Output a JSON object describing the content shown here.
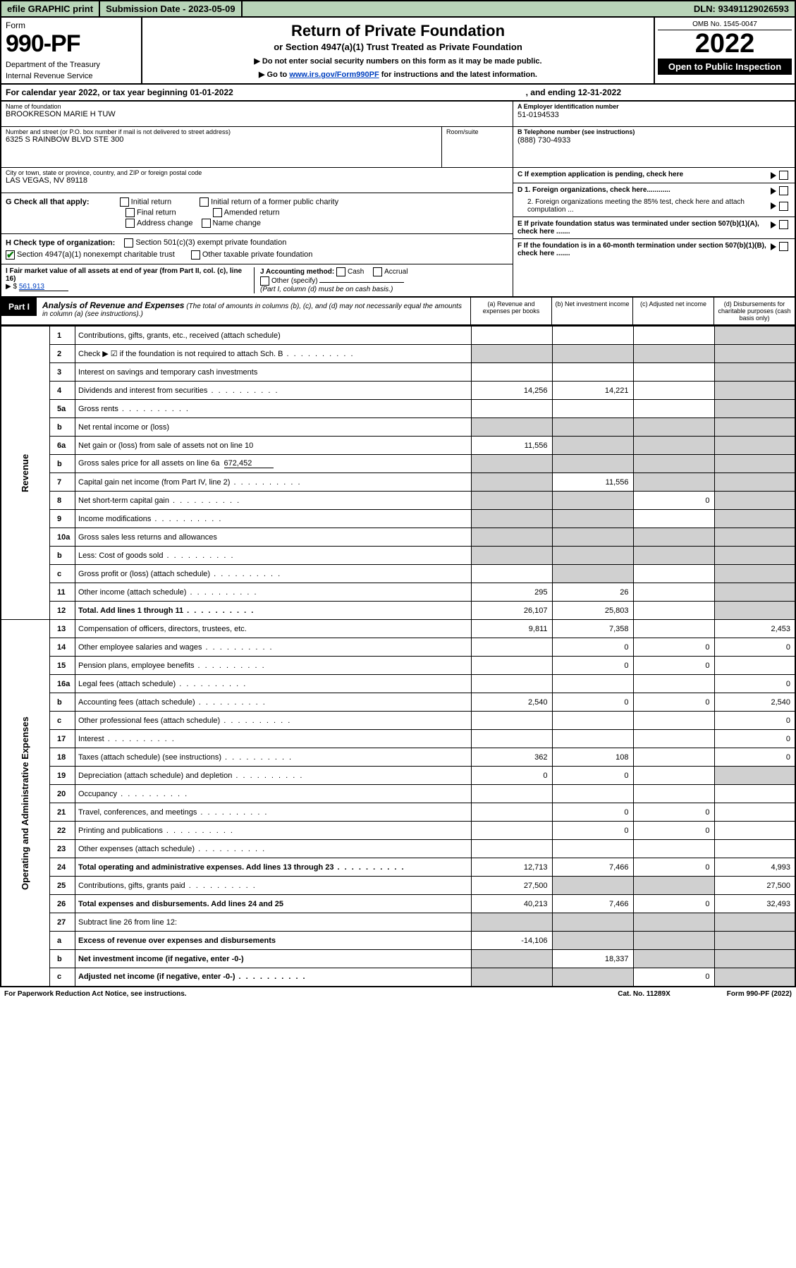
{
  "topbar": {
    "efile": "efile GRAPHIC print",
    "submission_label": "Submission Date - 2023-05-09",
    "dln": "DLN: 93491129026593"
  },
  "header": {
    "form_word": "Form",
    "form_num": "990-PF",
    "dept": "Department of the Treasury",
    "irs": "Internal Revenue Service",
    "title": "Return of Private Foundation",
    "subtitle": "or Section 4947(a)(1) Trust Treated as Private Foundation",
    "note1": "▶ Do not enter social security numbers on this form as it may be made public.",
    "note2_pre": "▶ Go to ",
    "note2_link": "www.irs.gov/Form990PF",
    "note2_post": " for instructions and the latest information.",
    "omb": "OMB No. 1545-0047",
    "year": "2022",
    "open": "Open to Public Inspection"
  },
  "calyear": {
    "left": "For calendar year 2022, or tax year beginning 01-01-2022",
    "right": ", and ending 12-31-2022"
  },
  "identity": {
    "name_lbl": "Name of foundation",
    "name": "BROOKRESON MARIE H TUW",
    "addr_lbl": "Number and street (or P.O. box number if mail is not delivered to street address)",
    "addr": "6325 S RAINBOW BLVD STE 300",
    "room_lbl": "Room/suite",
    "city_lbl": "City or town, state or province, country, and ZIP or foreign postal code",
    "city": "LAS VEGAS, NV  89118",
    "ein_lbl": "A Employer identification number",
    "ein": "51-0194533",
    "tel_lbl": "B Telephone number (see instructions)",
    "tel": "(888) 730-4933",
    "c_lbl": "C If exemption application is pending, check here",
    "d1": "D 1. Foreign organizations, check here............",
    "d2": "2. Foreign organizations meeting the 85% test, check here and attach computation ...",
    "e_lbl": "E If private foundation status was terminated under section 507(b)(1)(A), check here .......",
    "f_lbl": "F If the foundation is in a 60-month termination under section 507(b)(1)(B), check here .......",
    "g_lbl": "G Check all that apply:",
    "g_opts": [
      "Initial return",
      "Initial return of a former public charity",
      "Final return",
      "Amended return",
      "Address change",
      "Name change"
    ],
    "h_lbl": "H Check type of organization:",
    "h_opts": [
      "Section 501(c)(3) exempt private foundation",
      "Section 4947(a)(1) nonexempt charitable trust",
      "Other taxable private foundation"
    ],
    "i_lbl": "I Fair market value of all assets at end of year (from Part II, col. (c), line 16)",
    "i_val": "561,913",
    "j_lbl": "J Accounting method:",
    "j_opts": [
      "Cash",
      "Accrual",
      "Other (specify)"
    ],
    "j_note": "(Part I, column (d) must be on cash basis.)"
  },
  "part1": {
    "label": "Part I",
    "title": "Analysis of Revenue and Expenses",
    "title_note": "(The total of amounts in columns (b), (c), and (d) may not necessarily equal the amounts in column (a) (see instructions).)",
    "cols": {
      "a": "(a) Revenue and expenses per books",
      "b": "(b) Net investment income",
      "c": "(c) Adjusted net income",
      "d": "(d) Disbursements for charitable purposes (cash basis only)"
    }
  },
  "side_labels": {
    "rev": "Revenue",
    "exp": "Operating and Administrative Expenses"
  },
  "rows": [
    {
      "n": "1",
      "desc": "Contributions, gifts, grants, etc., received (attach schedule)",
      "a": "",
      "b": "",
      "c": "",
      "d": "",
      "d_shade": true
    },
    {
      "n": "2",
      "desc": "Check ▶ ☑ if the foundation is not required to attach Sch. B",
      "dots": true,
      "a": "",
      "b": "",
      "c": "",
      "d": "",
      "all_shade": true,
      "b_shade": true,
      "c_shade": true,
      "d_shade": true,
      "a_shade": true
    },
    {
      "n": "3",
      "desc": "Interest on savings and temporary cash investments",
      "a": "",
      "b": "",
      "c": "",
      "d": "",
      "d_shade": true
    },
    {
      "n": "4",
      "desc": "Dividends and interest from securities",
      "dots": true,
      "a": "14,256",
      "b": "14,221",
      "c": "",
      "d": "",
      "d_shade": true
    },
    {
      "n": "5a",
      "desc": "Gross rents",
      "dots": true,
      "a": "",
      "b": "",
      "c": "",
      "d": "",
      "d_shade": true
    },
    {
      "n": "b",
      "desc": "Net rental income or (loss)",
      "inline_box": true,
      "a": "",
      "b": "",
      "c": "",
      "d": "",
      "all_shade": true,
      "a_shade": true,
      "b_shade": true,
      "c_shade": true,
      "d_shade": true
    },
    {
      "n": "6a",
      "desc": "Net gain or (loss) from sale of assets not on line 10",
      "a": "11,556",
      "b": "",
      "c": "",
      "d": "",
      "b_shade": true,
      "c_shade": true,
      "d_shade": true
    },
    {
      "n": "b",
      "desc": "Gross sales price for all assets on line 6a",
      "inline_val": "672,452",
      "a": "",
      "b": "",
      "c": "",
      "d": "",
      "a_shade": true,
      "b_shade": true,
      "c_shade": true,
      "d_shade": true
    },
    {
      "n": "7",
      "desc": "Capital gain net income (from Part IV, line 2)",
      "dots": true,
      "a": "",
      "b": "11,556",
      "c": "",
      "d": "",
      "a_shade": true,
      "c_shade": true,
      "d_shade": true
    },
    {
      "n": "8",
      "desc": "Net short-term capital gain",
      "dots": true,
      "a": "",
      "b": "",
      "c": "0",
      "d": "",
      "a_shade": true,
      "b_shade": true,
      "d_shade": true
    },
    {
      "n": "9",
      "desc": "Income modifications",
      "dots": true,
      "a": "",
      "b": "",
      "c": "",
      "d": "",
      "a_shade": true,
      "b_shade": true,
      "d_shade": true
    },
    {
      "n": "10a",
      "desc": "Gross sales less returns and allowances",
      "inline_box": true,
      "a": "",
      "b": "",
      "c": "",
      "d": "",
      "a_shade": true,
      "b_shade": true,
      "c_shade": true,
      "d_shade": true
    },
    {
      "n": "b",
      "desc": "Less: Cost of goods sold",
      "dots": true,
      "inline_box": true,
      "a": "",
      "b": "",
      "c": "",
      "d": "",
      "a_shade": true,
      "b_shade": true,
      "c_shade": true,
      "d_shade": true
    },
    {
      "n": "c",
      "desc": "Gross profit or (loss) (attach schedule)",
      "dots": true,
      "a": "",
      "b": "",
      "c": "",
      "d": "",
      "b_shade": true,
      "d_shade": true
    },
    {
      "n": "11",
      "desc": "Other income (attach schedule)",
      "dots": true,
      "a": "295",
      "b": "26",
      "c": "",
      "d": "",
      "d_shade": true
    },
    {
      "n": "12",
      "desc": "Total. Add lines 1 through 11",
      "dots": true,
      "bold": true,
      "a": "26,107",
      "b": "25,803",
      "c": "",
      "d": "",
      "d_shade": true
    },
    {
      "n": "13",
      "desc": "Compensation of officers, directors, trustees, etc.",
      "a": "9,811",
      "b": "7,358",
      "c": "",
      "d": "2,453"
    },
    {
      "n": "14",
      "desc": "Other employee salaries and wages",
      "dots": true,
      "a": "",
      "b": "0",
      "c": "0",
      "d": "0"
    },
    {
      "n": "15",
      "desc": "Pension plans, employee benefits",
      "dots": true,
      "a": "",
      "b": "0",
      "c": "0",
      "d": ""
    },
    {
      "n": "16a",
      "desc": "Legal fees (attach schedule)",
      "dots": true,
      "a": "",
      "b": "",
      "c": "",
      "d": "0"
    },
    {
      "n": "b",
      "desc": "Accounting fees (attach schedule)",
      "dots": true,
      "a": "2,540",
      "b": "0",
      "c": "0",
      "d": "2,540"
    },
    {
      "n": "c",
      "desc": "Other professional fees (attach schedule)",
      "dots": true,
      "a": "",
      "b": "",
      "c": "",
      "d": "0"
    },
    {
      "n": "17",
      "desc": "Interest",
      "dots": true,
      "a": "",
      "b": "",
      "c": "",
      "d": "0"
    },
    {
      "n": "18",
      "desc": "Taxes (attach schedule) (see instructions)",
      "dots": true,
      "a": "362",
      "b": "108",
      "c": "",
      "d": "0"
    },
    {
      "n": "19",
      "desc": "Depreciation (attach schedule) and depletion",
      "dots": true,
      "a": "0",
      "b": "0",
      "c": "",
      "d": "",
      "d_shade": true
    },
    {
      "n": "20",
      "desc": "Occupancy",
      "dots": true,
      "a": "",
      "b": "",
      "c": "",
      "d": ""
    },
    {
      "n": "21",
      "desc": "Travel, conferences, and meetings",
      "dots": true,
      "a": "",
      "b": "0",
      "c": "0",
      "d": ""
    },
    {
      "n": "22",
      "desc": "Printing and publications",
      "dots": true,
      "a": "",
      "b": "0",
      "c": "0",
      "d": ""
    },
    {
      "n": "23",
      "desc": "Other expenses (attach schedule)",
      "dots": true,
      "a": "",
      "b": "",
      "c": "",
      "d": ""
    },
    {
      "n": "24",
      "desc": "Total operating and administrative expenses. Add lines 13 through 23",
      "dots": true,
      "bold": true,
      "a": "12,713",
      "b": "7,466",
      "c": "0",
      "d": "4,993"
    },
    {
      "n": "25",
      "desc": "Contributions, gifts, grants paid",
      "dots": true,
      "a": "27,500",
      "b": "",
      "c": "",
      "d": "27,500",
      "b_shade": true,
      "c_shade": true
    },
    {
      "n": "26",
      "desc": "Total expenses and disbursements. Add lines 24 and 25",
      "bold": true,
      "a": "40,213",
      "b": "7,466",
      "c": "0",
      "d": "32,493"
    },
    {
      "n": "27",
      "desc": "Subtract line 26 from line 12:",
      "a": "",
      "b": "",
      "c": "",
      "d": "",
      "a_shade": true,
      "b_shade": true,
      "c_shade": true,
      "d_shade": true
    },
    {
      "n": "a",
      "desc": "Excess of revenue over expenses and disbursements",
      "bold": true,
      "a": "-14,106",
      "b": "",
      "c": "",
      "d": "",
      "b_shade": true,
      "c_shade": true,
      "d_shade": true
    },
    {
      "n": "b",
      "desc": "Net investment income (if negative, enter -0-)",
      "bold": true,
      "a": "",
      "b": "18,337",
      "c": "",
      "d": "",
      "a_shade": true,
      "c_shade": true,
      "d_shade": true
    },
    {
      "n": "c",
      "desc": "Adjusted net income (if negative, enter -0-)",
      "dots": true,
      "bold": true,
      "a": "",
      "b": "",
      "c": "0",
      "d": "",
      "a_shade": true,
      "b_shade": true,
      "d_shade": true
    }
  ],
  "footer": {
    "left": "For Paperwork Reduction Act Notice, see instructions.",
    "mid": "Cat. No. 11289X",
    "right": "Form 990-PF (2022)"
  },
  "colors": {
    "topbar_bg": "#b8d4b8",
    "shade": "#d0d0d0",
    "link": "#0040c0",
    "check": "#0a7a0a"
  }
}
